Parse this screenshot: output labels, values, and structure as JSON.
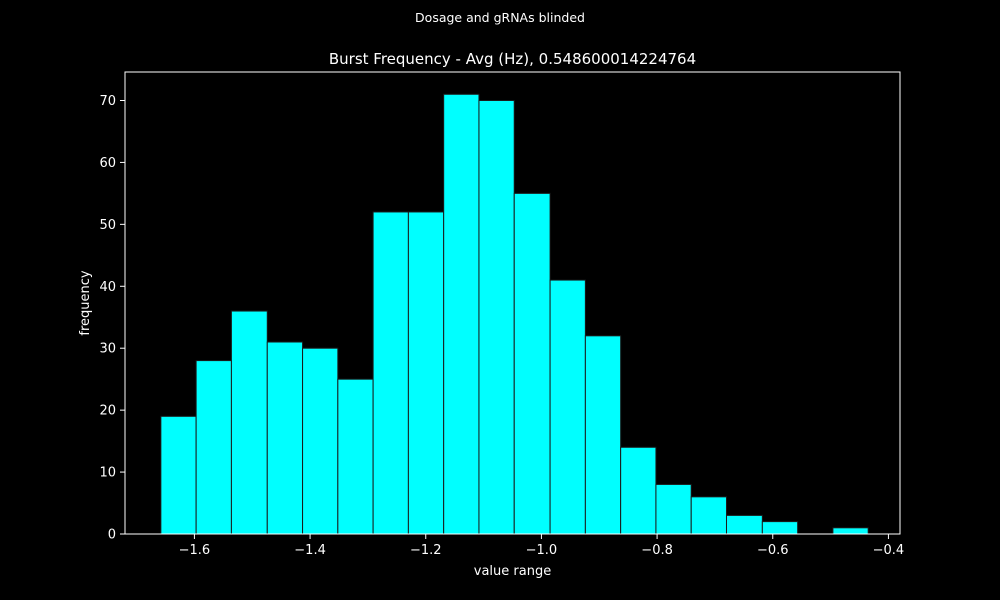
{
  "figure": {
    "suptitle": "Dosage and gRNAs blinded"
  },
  "chart_data": {
    "type": "bar",
    "title": "Burst Frequency - Avg (Hz), 0.548600014224764",
    "xlabel": "value range",
    "ylabel": "frequency",
    "xlim": [
      -1.72,
      -0.38
    ],
    "ylim": [
      0,
      74.6
    ],
    "xticks": [
      -1.6,
      -1.4,
      -1.2,
      -1.0,
      -0.8,
      -0.6,
      -0.4
    ],
    "xtick_labels": [
      "−1.6",
      "−1.4",
      "−1.2",
      "−1.0",
      "−0.8",
      "−0.6",
      "−0.4"
    ],
    "yticks": [
      0,
      10,
      20,
      30,
      40,
      50,
      60,
      70
    ],
    "ytick_labels": [
      "0",
      "10",
      "20",
      "30",
      "40",
      "50",
      "60",
      "70"
    ],
    "bin_start": -1.658,
    "bin_width": 0.0612,
    "bins": [
      {
        "x0": -1.658,
        "x1": -1.597,
        "count": 19
      },
      {
        "x0": -1.597,
        "x1": -1.536,
        "count": 28
      },
      {
        "x0": -1.536,
        "x1": -1.474,
        "count": 36
      },
      {
        "x0": -1.474,
        "x1": -1.413,
        "count": 31
      },
      {
        "x0": -1.413,
        "x1": -1.352,
        "count": 30
      },
      {
        "x0": -1.352,
        "x1": -1.291,
        "count": 25
      },
      {
        "x0": -1.291,
        "x1": -1.23,
        "count": 52
      },
      {
        "x0": -1.23,
        "x1": -1.169,
        "count": 52
      },
      {
        "x0": -1.169,
        "x1": -1.108,
        "count": 71
      },
      {
        "x0": -1.108,
        "x1": -1.047,
        "count": 70
      },
      {
        "x0": -1.047,
        "x1": -0.985,
        "count": 55
      },
      {
        "x0": -0.985,
        "x1": -0.924,
        "count": 41
      },
      {
        "x0": -0.924,
        "x1": -0.863,
        "count": 32
      },
      {
        "x0": -0.863,
        "x1": -0.802,
        "count": 14
      },
      {
        "x0": -0.802,
        "x1": -0.741,
        "count": 8
      },
      {
        "x0": -0.741,
        "x1": -0.68,
        "count": 6
      },
      {
        "x0": -0.68,
        "x1": -0.618,
        "count": 3
      },
      {
        "x0": -0.618,
        "x1": -0.557,
        "count": 2
      },
      {
        "x0": -0.557,
        "x1": -0.496,
        "count": 0
      },
      {
        "x0": -0.496,
        "x1": -0.435,
        "count": 1
      }
    ],
    "grid": false,
    "colors": {
      "background": "#000000",
      "bar_fill": "#00ffff",
      "bar_edge": "#1a1a1a",
      "text": "#ffffff",
      "axes": "#ffffff"
    }
  }
}
